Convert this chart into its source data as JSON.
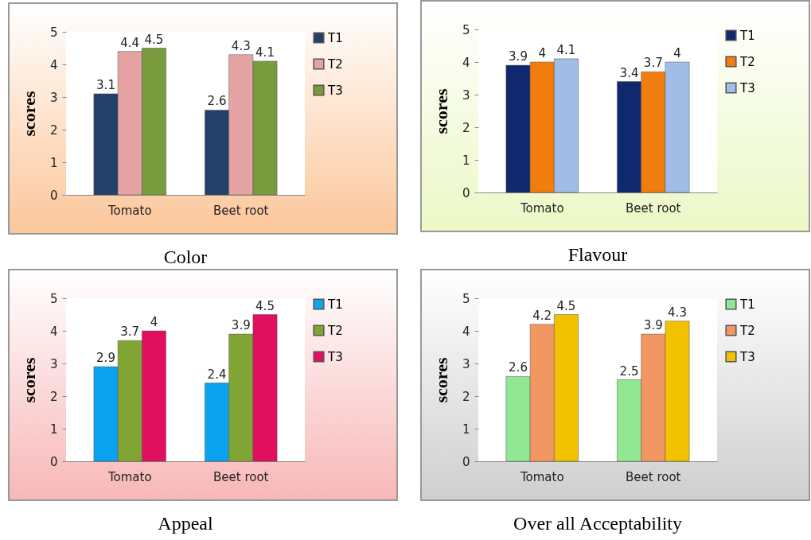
{
  "chart_data": [
    {
      "type": "bar",
      "title": "Color",
      "ylabel": "scores",
      "categories": [
        "Tomato",
        "Beet root"
      ],
      "ylim": [
        0,
        5
      ],
      "yticks": [
        0,
        1,
        2,
        3,
        4,
        5
      ],
      "grid": false,
      "legend": "right",
      "data_labels": true,
      "series": [
        {
          "name": "T1",
          "color": "#24406a",
          "values": [
            3.1,
            2.6
          ]
        },
        {
          "name": "T2",
          "color": "#e6a3a3",
          "values": [
            4.4,
            4.3
          ]
        },
        {
          "name": "T3",
          "color": "#7a9a3e",
          "values": [
            4.5,
            4.1
          ]
        }
      ]
    },
    {
      "type": "bar",
      "title": "Flavour",
      "ylabel": "scores",
      "categories": [
        "Tomato",
        "Beet root"
      ],
      "ylim": [
        0,
        5
      ],
      "yticks": [
        0,
        1,
        2,
        3,
        4,
        5
      ],
      "grid": false,
      "legend": "right",
      "data_labels": true,
      "series": [
        {
          "name": "T1",
          "color": "#10296e",
          "values": [
            3.9,
            3.4
          ]
        },
        {
          "name": "T2",
          "color": "#f07d0e",
          "values": [
            4,
            3.7
          ]
        },
        {
          "name": "T3",
          "color": "#9fbde6",
          "values": [
            4.1,
            4
          ]
        }
      ]
    },
    {
      "type": "bar",
      "title": "Appeal",
      "ylabel": "scores",
      "categories": [
        "Tomato",
        "Beet root"
      ],
      "ylim": [
        0,
        5
      ],
      "yticks": [
        0,
        1,
        2,
        3,
        4,
        5
      ],
      "grid": false,
      "legend": "right",
      "data_labels": true,
      "series": [
        {
          "name": "T1",
          "color": "#0ba2f0",
          "values": [
            2.9,
            2.4
          ]
        },
        {
          "name": "T2",
          "color": "#80a535",
          "values": [
            3.7,
            3.9
          ]
        },
        {
          "name": "T3",
          "color": "#e1105f",
          "values": [
            4,
            4.5
          ]
        }
      ]
    },
    {
      "type": "bar",
      "title": "Over all Acceptability",
      "ylabel": "scores",
      "categories": [
        "Tomato",
        "Beet root"
      ],
      "ylim": [
        0,
        5
      ],
      "yticks": [
        0,
        1,
        2,
        3,
        4,
        5
      ],
      "grid": false,
      "legend": "right",
      "data_labels": true,
      "series": [
        {
          "name": "T1",
          "color": "#92e892",
          "values": [
            2.6,
            2.5
          ]
        },
        {
          "name": "T2",
          "color": "#f39762",
          "values": [
            4.2,
            3.9
          ]
        },
        {
          "name": "T3",
          "color": "#f2c200",
          "values": [
            4.5,
            4.3
          ]
        }
      ]
    }
  ]
}
